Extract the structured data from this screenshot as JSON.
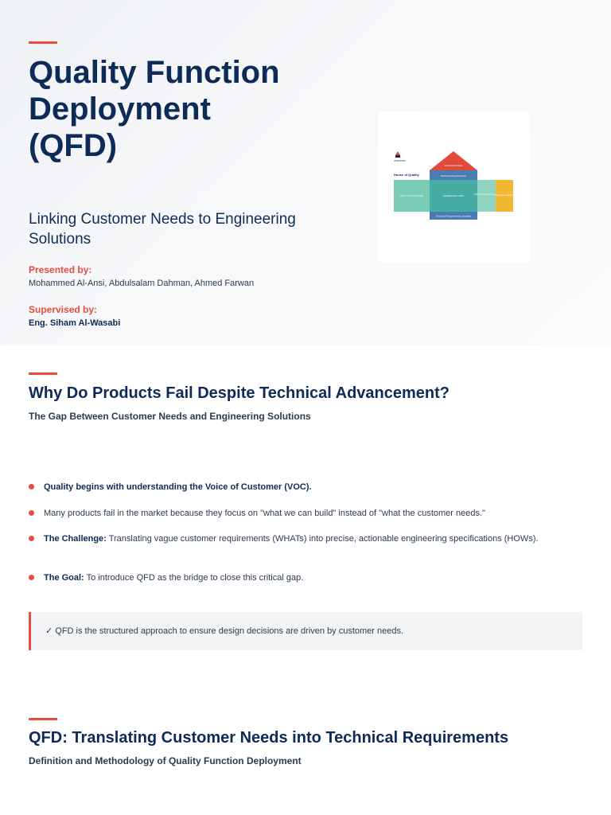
{
  "hero": {
    "title": "Quality Function Deployment (QFD)",
    "subtitle": "Linking Customer Needs to Engineering Solutions",
    "presented_label": "Presented by:",
    "presenters": "Mohammed Al-Ansi, Abdulsalam Dahman, Ahmed Farwan",
    "supervised_label": "Supervised by:",
    "supervisor": "Eng. Siham Al-Wasabi"
  },
  "hoq_diagram": {
    "logo_text": "ATEKSOM",
    "title": "House of Quality",
    "roof": "Interrelationships",
    "tech_requirements": "Technical Requirements",
    "voice_of_customer": "Voice of the Customer",
    "relationship_matrix": "Relationship matrix",
    "customer_importance": "Customer importance priorities",
    "competitive_evaluation": "Competitive evaluation",
    "tech_priorities": "Technical Requirements priorities",
    "colors": {
      "roof": "#e2493b",
      "header": "#4a7bb3",
      "voc": "#79cbb5",
      "matrix": "#47aca3",
      "importance": "#8ed4c1",
      "competitive": "#f3b833",
      "bottom": "#4a7bb3"
    }
  },
  "section1": {
    "title": "Why Do Products Fail Despite Technical Advancement?",
    "subtitle": "The Gap Between Customer Needs and Engineering Solutions",
    "bullets": [
      {
        "bold": "Quality begins with understanding the Voice of Customer (VOC).",
        "text": ""
      },
      {
        "bold": "",
        "text": "Many products fail in the market because they focus on \"what we can build\" instead of \"what the customer needs.\""
      },
      {
        "bold": "The Challenge:",
        "text": " Translating vague customer requirements (WHATs) into precise, actionable engineering specifications (HOWs)."
      },
      {
        "bold": "The Goal:",
        "text": " To introduce QFD as the bridge to close this critical gap."
      }
    ],
    "callout": "✓ QFD is the structured approach to ensure design decisions are driven by customer needs."
  },
  "section2": {
    "title": "QFD: Translating Customer Needs into Technical Requirements",
    "subtitle": "Definition and Methodology of Quality Function Deployment"
  },
  "colors": {
    "accent": "#e74c3c",
    "navy": "#0d2b56"
  }
}
